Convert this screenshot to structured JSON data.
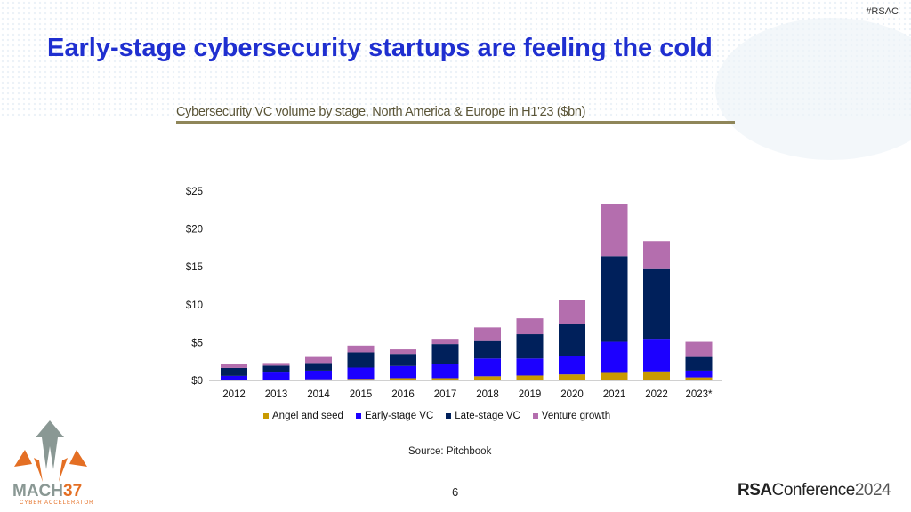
{
  "header": {
    "hashtag": "#RSAC",
    "title": "Early-stage cybersecurity startups are feeling the cold"
  },
  "chart_data": {
    "type": "bar",
    "stacked": true,
    "title": "Cybersecurity VC volume by stage, North America & Europe in H1'23 ($bn)",
    "categories": [
      "2012",
      "2013",
      "2014",
      "2015",
      "2016",
      "2017",
      "2018",
      "2019",
      "2020",
      "2021",
      "2022",
      "2023*"
    ],
    "yticks": [
      "$0",
      "$5",
      "$10",
      "$15",
      "$20",
      "$25"
    ],
    "ylim": [
      0,
      25
    ],
    "grid": false,
    "legend_position": "bottom",
    "series": [
      {
        "name": "Angel and seed",
        "color": "#c99a00",
        "values": [
          0.1,
          0.1,
          0.15,
          0.2,
          0.3,
          0.3,
          0.55,
          0.65,
          0.8,
          1.0,
          1.2,
          0.4
        ]
      },
      {
        "name": "Early-stage VC",
        "color": "#1c00ff",
        "values": [
          0.5,
          0.95,
          1.15,
          1.5,
          1.6,
          1.9,
          2.35,
          2.25,
          2.4,
          4.1,
          4.3,
          0.9
        ]
      },
      {
        "name": "Late-stage VC",
        "color": "#00205b",
        "values": [
          1.05,
          0.9,
          1.0,
          2.0,
          1.6,
          2.6,
          2.3,
          3.2,
          4.3,
          11.3,
          9.2,
          1.8
        ]
      },
      {
        "name": "Venture growth",
        "color": "#b46eae",
        "values": [
          0.5,
          0.35,
          0.8,
          0.9,
          0.6,
          0.7,
          1.8,
          2.1,
          3.1,
          6.9,
          3.7,
          2.0
        ]
      }
    ]
  },
  "source": "Source: Pitchbook",
  "page_number": "6",
  "footer": {
    "logo_left": "MACH37 CYBER ACCELERATOR",
    "logo_right_bold": "RSA",
    "logo_right_text": "Conference",
    "logo_right_year": "2024"
  }
}
